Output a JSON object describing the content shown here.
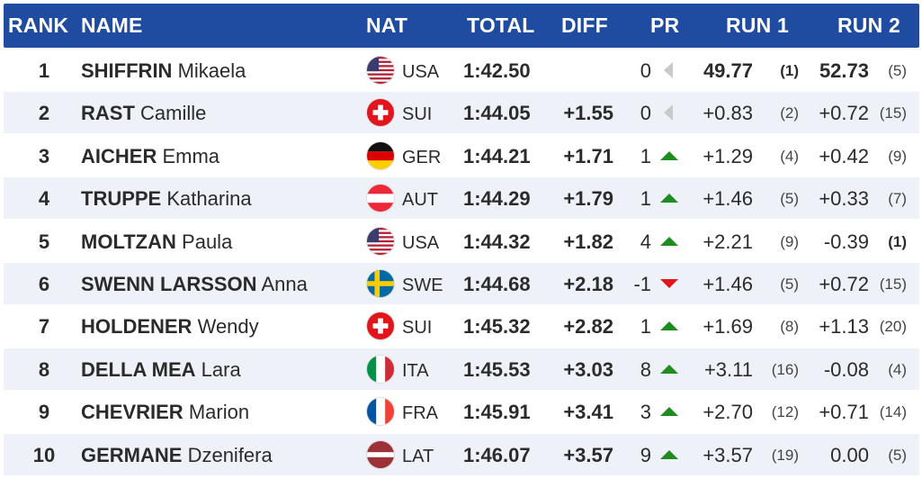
{
  "colors": {
    "header_bg": "#1f4ba0",
    "alt_row": "#eef1f8",
    "up": "#1e8c1e",
    "down": "#e2141c",
    "same": "#c9c9c9"
  },
  "header": {
    "rank": "RANK",
    "name": "NAME",
    "nat": "NAT",
    "total": "TOTAL",
    "diff": "DIFF",
    "pr": "PR",
    "run1": "RUN 1",
    "run2": "RUN 2"
  },
  "rows": [
    {
      "rank": "1",
      "last": "SHIFFRIN",
      "first": "Mikaela",
      "flag": "usa-flag-icon",
      "nat": "USA",
      "total": "1:42.50",
      "diff": "",
      "pr": "0",
      "trend": "same",
      "run1": "49.77",
      "run1_pos": "(1)",
      "run1_bold": true,
      "run2": "52.73",
      "run2_pos": "(5)",
      "run2_bold": true,
      "run2_pos_bold": false
    },
    {
      "rank": "2",
      "last": "RAST",
      "first": "Camille",
      "flag": "sui-flag-icon",
      "nat": "SUI",
      "total": "1:44.05",
      "diff": "+1.55",
      "pr": "0",
      "trend": "same",
      "run1": "+0.83",
      "run1_pos": "(2)",
      "run1_bold": false,
      "run2": "+0.72",
      "run2_pos": "(15)",
      "run2_bold": false,
      "run2_pos_bold": false
    },
    {
      "rank": "3",
      "last": "AICHER",
      "first": "Emma",
      "flag": "ger-flag-icon",
      "nat": "GER",
      "total": "1:44.21",
      "diff": "+1.71",
      "pr": "1",
      "trend": "up",
      "run1": "+1.29",
      "run1_pos": "(4)",
      "run1_bold": false,
      "run2": "+0.42",
      "run2_pos": "(9)",
      "run2_bold": false,
      "run2_pos_bold": false
    },
    {
      "rank": "4",
      "last": "TRUPPE",
      "first": "Katharina",
      "flag": "aut-flag-icon",
      "nat": "AUT",
      "total": "1:44.29",
      "diff": "+1.79",
      "pr": "1",
      "trend": "up",
      "run1": "+1.46",
      "run1_pos": "(5)",
      "run1_bold": false,
      "run2": "+0.33",
      "run2_pos": "(7)",
      "run2_bold": false,
      "run2_pos_bold": false
    },
    {
      "rank": "5",
      "last": "MOLTZAN",
      "first": "Paula",
      "flag": "usa-flag-icon",
      "nat": "USA",
      "total": "1:44.32",
      "diff": "+1.82",
      "pr": "4",
      "trend": "up",
      "run1": "+2.21",
      "run1_pos": "(9)",
      "run1_bold": false,
      "run2": "-0.39",
      "run2_pos": "(1)",
      "run2_bold": false,
      "run2_pos_bold": true
    },
    {
      "rank": "6",
      "last": "SWENN LARSSON",
      "first": "Anna",
      "flag": "swe-flag-icon",
      "nat": "SWE",
      "total": "1:44.68",
      "diff": "+2.18",
      "pr": "-1",
      "trend": "down",
      "run1": "+1.46",
      "run1_pos": "(5)",
      "run1_bold": false,
      "run2": "+0.72",
      "run2_pos": "(15)",
      "run2_bold": false,
      "run2_pos_bold": false
    },
    {
      "rank": "7",
      "last": "HOLDENER",
      "first": "Wendy",
      "flag": "sui-flag-icon",
      "nat": "SUI",
      "total": "1:45.32",
      "diff": "+2.82",
      "pr": "1",
      "trend": "up",
      "run1": "+1.69",
      "run1_pos": "(8)",
      "run1_bold": false,
      "run2": "+1.13",
      "run2_pos": "(20)",
      "run2_bold": false,
      "run2_pos_bold": false
    },
    {
      "rank": "8",
      "last": "DELLA MEA",
      "first": "Lara",
      "flag": "ita-flag-icon",
      "nat": "ITA",
      "total": "1:45.53",
      "diff": "+3.03",
      "pr": "8",
      "trend": "up",
      "run1": "+3.11",
      "run1_pos": "(16)",
      "run1_bold": false,
      "run2": "-0.08",
      "run2_pos": "(4)",
      "run2_bold": false,
      "run2_pos_bold": false
    },
    {
      "rank": "9",
      "last": "CHEVRIER",
      "first": "Marion",
      "flag": "fra-flag-icon",
      "nat": "FRA",
      "total": "1:45.91",
      "diff": "+3.41",
      "pr": "3",
      "trend": "up",
      "run1": "+2.70",
      "run1_pos": "(12)",
      "run1_bold": false,
      "run2": "+0.71",
      "run2_pos": "(14)",
      "run2_bold": false,
      "run2_pos_bold": false
    },
    {
      "rank": "10",
      "last": "GERMANE",
      "first": "Dzenifera",
      "flag": "lat-flag-icon",
      "nat": "LAT",
      "total": "1:46.07",
      "diff": "+3.57",
      "pr": "9",
      "trend": "up",
      "run1": "+3.57",
      "run1_pos": "(19)",
      "run1_bold": false,
      "run2": "0.00",
      "run2_pos": "(5)",
      "run2_bold": false,
      "run2_pos_bold": false
    }
  ]
}
